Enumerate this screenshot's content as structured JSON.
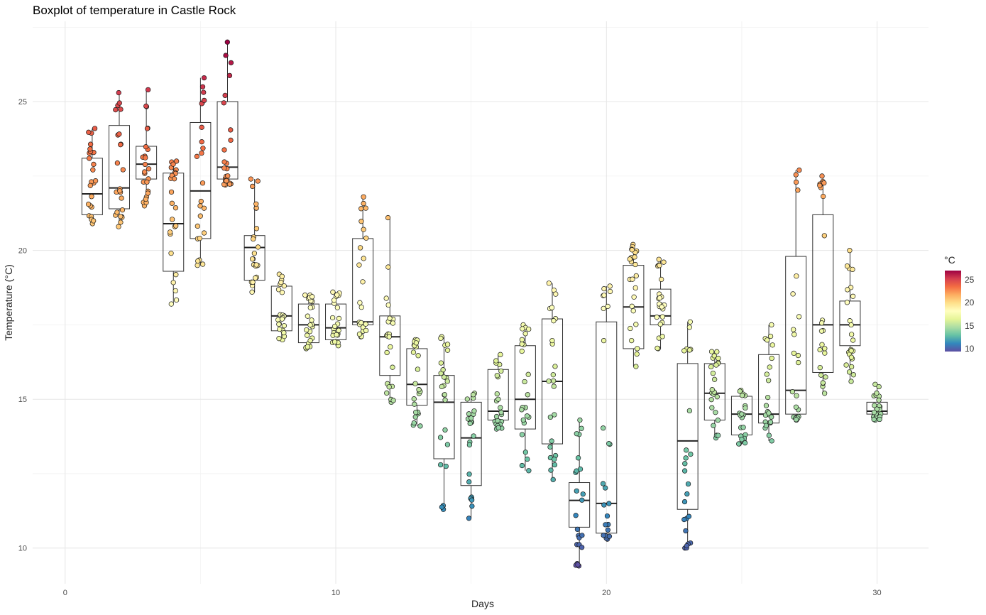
{
  "chart_data": {
    "type": "boxplot",
    "title": "Boxplot of temperature in Castle Rock",
    "xlabel": "Days",
    "ylabel": "Temperature (°C)",
    "xlim": [
      -1.2,
      31.9
    ],
    "ylim": [
      8.8,
      27.7
    ],
    "x_ticks": [
      0,
      10,
      20,
      30
    ],
    "y_ticks": [
      10,
      15,
      20,
      25
    ],
    "grid": true,
    "legend": {
      "title": "°C",
      "position": "right",
      "ticks": [
        10,
        15,
        20,
        25
      ],
      "range": [
        9.4,
        27
      ],
      "palette": "Spectral",
      "colors": [
        "#5e4fa2",
        "#3288bd",
        "#66c2a5",
        "#abdda4",
        "#e6f598",
        "#ffffbf",
        "#fee08b",
        "#fdae61",
        "#f46d43",
        "#d53e4f",
        "#9e0142"
      ]
    },
    "boxes": [
      {
        "day": 1,
        "min": 20.9,
        "q1": 21.2,
        "median": 21.9,
        "q3": 23.1,
        "max": 24.1
      },
      {
        "day": 2,
        "min": 20.8,
        "q1": 21.4,
        "median": 22.1,
        "q3": 24.2,
        "max": 25.3
      },
      {
        "day": 3,
        "min": 21.5,
        "q1": 22.4,
        "median": 22.9,
        "q3": 23.5,
        "max": 25.4
      },
      {
        "day": 4,
        "min": 18.2,
        "q1": 19.3,
        "median": 20.9,
        "q3": 22.6,
        "max": 23.0
      },
      {
        "day": 5,
        "min": 19.5,
        "q1": 20.4,
        "median": 22.0,
        "q3": 24.3,
        "max": 25.8
      },
      {
        "day": 6,
        "min": 22.2,
        "q1": 22.4,
        "median": 22.8,
        "q3": 25.0,
        "max": 27.0
      },
      {
        "day": 7,
        "min": 18.6,
        "q1": 19.0,
        "median": 20.1,
        "q3": 20.5,
        "max": 22.4
      },
      {
        "day": 8,
        "min": 17.0,
        "q1": 17.3,
        "median": 17.8,
        "q3": 18.8,
        "max": 19.2
      },
      {
        "day": 9,
        "min": 16.7,
        "q1": 16.9,
        "median": 17.5,
        "q3": 18.2,
        "max": 18.5
      },
      {
        "day": 10,
        "min": 16.8,
        "q1": 17.0,
        "median": 17.4,
        "q3": 18.2,
        "max": 18.6
      },
      {
        "day": 11,
        "min": 17.1,
        "q1": 17.5,
        "median": 17.6,
        "q3": 20.4,
        "max": 21.8
      },
      {
        "day": 12,
        "min": 14.9,
        "q1": 15.8,
        "median": 17.1,
        "q3": 17.8,
        "max": 21.1
      },
      {
        "day": 13,
        "min": 14.1,
        "q1": 14.8,
        "median": 15.5,
        "q3": 16.7,
        "max": 17.0
      },
      {
        "day": 14,
        "min": 11.3,
        "q1": 13.0,
        "median": 14.9,
        "q3": 15.8,
        "max": 17.1
      },
      {
        "day": 15,
        "min": 11.0,
        "q1": 12.1,
        "median": 13.7,
        "q3": 14.9,
        "max": 15.2
      },
      {
        "day": 16,
        "min": 14.0,
        "q1": 14.3,
        "median": 14.6,
        "q3": 16.0,
        "max": 16.5
      },
      {
        "day": 17,
        "min": 12.6,
        "q1": 14.0,
        "median": 15.0,
        "q3": 16.8,
        "max": 17.5
      },
      {
        "day": 18,
        "min": 12.3,
        "q1": 13.5,
        "median": 15.6,
        "q3": 17.7,
        "max": 18.9
      },
      {
        "day": 19,
        "min": 9.4,
        "q1": 10.7,
        "median": 11.6,
        "q3": 12.2,
        "max": 14.3
      },
      {
        "day": 20,
        "min": 10.3,
        "q1": 10.5,
        "median": 11.5,
        "q3": 17.6,
        "max": 18.8
      },
      {
        "day": 21,
        "min": 16.1,
        "q1": 16.7,
        "median": 18.1,
        "q3": 19.5,
        "max": 20.2
      },
      {
        "day": 22,
        "min": 16.7,
        "q1": 17.5,
        "median": 17.8,
        "q3": 18.7,
        "max": 19.7
      },
      {
        "day": 23,
        "min": 10.0,
        "q1": 11.3,
        "median": 13.6,
        "q3": 16.2,
        "max": 17.6
      },
      {
        "day": 24,
        "min": 13.7,
        "q1": 14.3,
        "median": 15.2,
        "q3": 16.2,
        "max": 16.6
      },
      {
        "day": 25,
        "min": 13.5,
        "q1": 13.8,
        "median": 14.5,
        "q3": 15.1,
        "max": 15.3
      },
      {
        "day": 26,
        "min": 13.6,
        "q1": 14.2,
        "median": 14.5,
        "q3": 16.5,
        "max": 17.5
      },
      {
        "day": 27,
        "min": 14.3,
        "q1": 14.5,
        "median": 15.3,
        "q3": 19.8,
        "max": 22.7
      },
      {
        "day": 28,
        "min": 15.2,
        "q1": 15.9,
        "median": 17.5,
        "q3": 21.2,
        "max": 22.5
      },
      {
        "day": 29,
        "min": 15.6,
        "q1": 16.8,
        "median": 17.5,
        "q3": 18.3,
        "max": 20.0
      },
      {
        "day": 30,
        "min": 14.3,
        "q1": 14.5,
        "median": 14.6,
        "q3": 14.9,
        "max": 15.5
      }
    ]
  }
}
